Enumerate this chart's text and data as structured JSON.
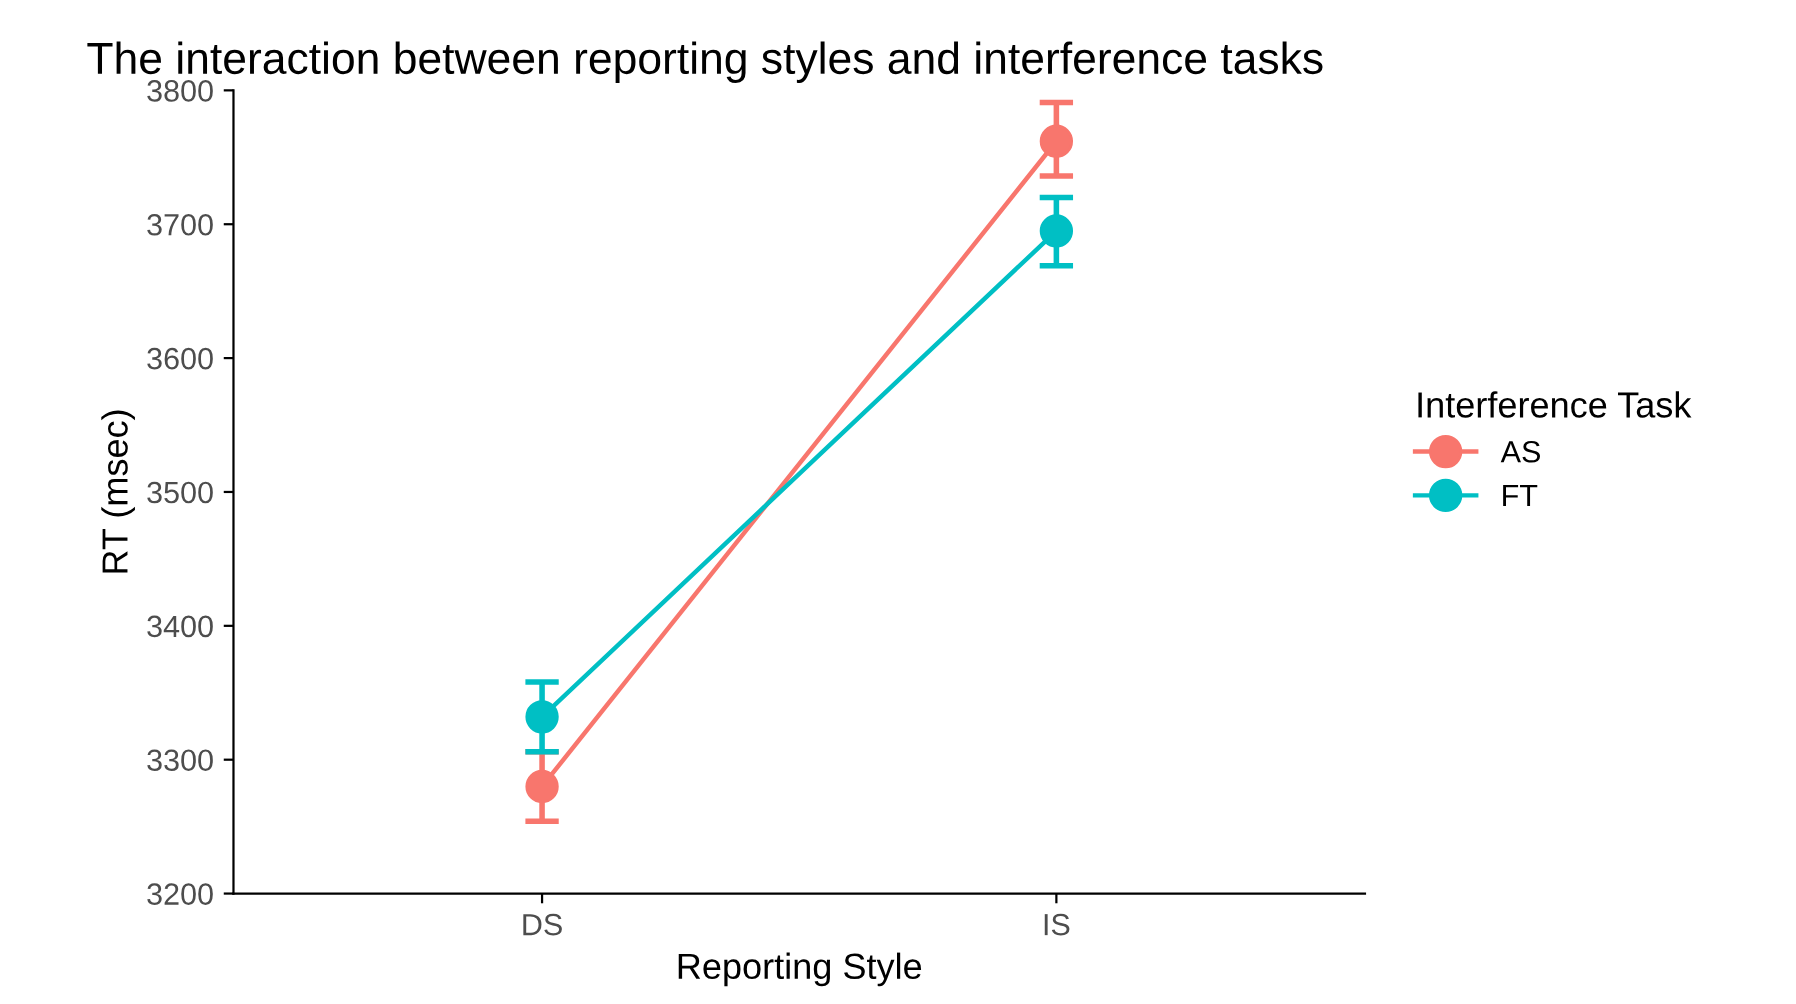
{
  "chart_data": {
    "type": "line",
    "title": "The interaction between reporting styles and interference tasks",
    "xlabel": "Reporting Style",
    "ylabel": "RT (msec)",
    "legend_title": "Interference Task",
    "categories": [
      "DS",
      "IS"
    ],
    "series": [
      {
        "name": "AS",
        "color": "#f8766d",
        "values": [
          3280,
          3762
        ],
        "errors": [
          [
            3254,
            3306
          ],
          [
            3736,
            3791
          ]
        ]
      },
      {
        "name": "FT",
        "color": "#00bfc4",
        "values": [
          3332,
          3695
        ],
        "errors": [
          [
            3306,
            3358
          ],
          [
            3669,
            3720
          ]
        ]
      }
    ],
    "ylim": [
      3200,
      3800
    ],
    "yticks": [
      3200,
      3300,
      3400,
      3500,
      3600,
      3700,
      3800
    ],
    "marker": "circle",
    "line_style": "solid",
    "grid": false,
    "legend": "right"
  }
}
